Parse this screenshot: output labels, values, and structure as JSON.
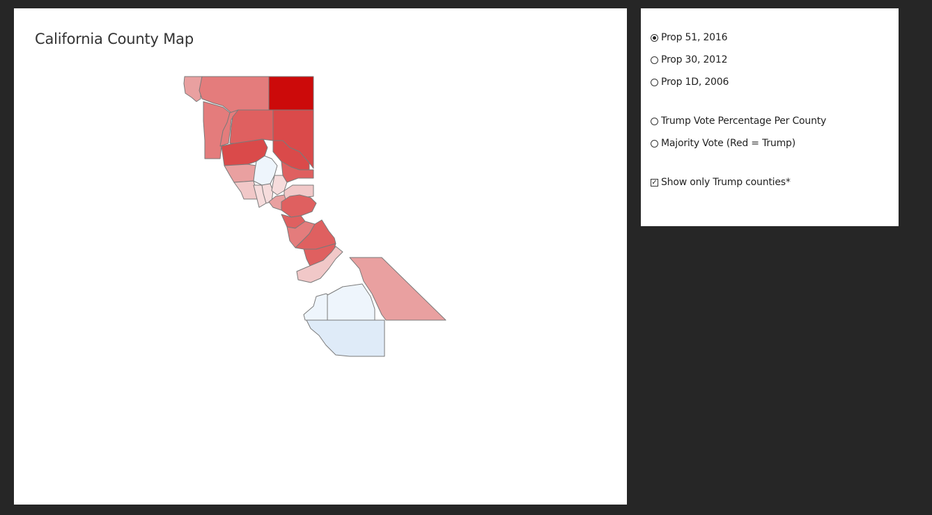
{
  "map": {
    "title": "California County Map",
    "colors": {
      "dark_red": "#cc0a0a",
      "red": "#da4a4a",
      "medium_red": "#df6060",
      "light_red": "#e47c7c",
      "pale_red": "#e9a0a0",
      "very_pale_red": "#f1c8c8",
      "blush": "#f6dcdc",
      "pale_blue": "#eef5fc",
      "light_blue": "#dfebf8"
    }
  },
  "controls": {
    "options": [
      {
        "label": "Prop 51, 2016",
        "type": "radio",
        "checked": true
      },
      {
        "label": "Prop 30, 2012",
        "type": "radio",
        "checked": false
      },
      {
        "label": "Prop 1D, 2006",
        "type": "radio",
        "checked": false
      },
      {
        "label": "Trump Vote Percentage Per County",
        "type": "radio",
        "checked": false
      },
      {
        "label": "Majority Vote (Red = Trump)",
        "type": "radio",
        "checked": false
      },
      {
        "label": "Show only Trump counties*",
        "type": "checkbox",
        "checked": true
      }
    ]
  }
}
